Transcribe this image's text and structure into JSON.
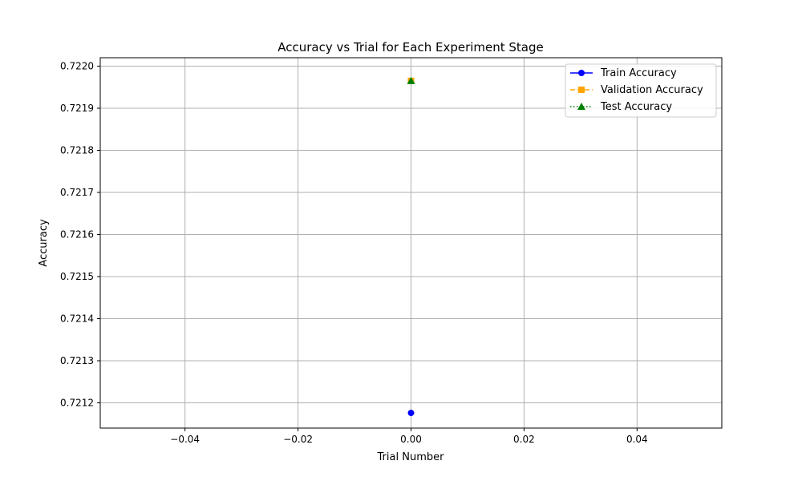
{
  "chart_data": {
    "type": "line",
    "title": "Accuracy vs Trial for Each Experiment Stage",
    "xlabel": "Trial Number",
    "ylabel": "Accuracy",
    "xlim": [
      -0.055,
      0.055
    ],
    "ylim": [
      0.72114,
      0.72202
    ],
    "xticks": [
      -0.04,
      -0.02,
      0.0,
      0.02,
      0.04
    ],
    "xtick_labels": [
      "−0.04",
      "−0.02",
      "0.00",
      "0.02",
      "0.04"
    ],
    "yticks": [
      0.7212,
      0.7213,
      0.7214,
      0.7215,
      0.7216,
      0.7217,
      0.7218,
      0.7219,
      0.722
    ],
    "ytick_labels": [
      "0.7212",
      "0.7213",
      "0.7214",
      "0.7215",
      "0.7216",
      "0.7217",
      "0.7218",
      "0.7219",
      "0.7220"
    ],
    "grid": true,
    "legend_position": "top-right",
    "series": [
      {
        "name": "Train Accuracy",
        "color": "#0000ff",
        "marker": "circle",
        "linestyle": "solid",
        "x": [
          0
        ],
        "y": [
          0.721176
        ]
      },
      {
        "name": "Validation Accuracy",
        "color": "#ffa500",
        "marker": "square",
        "linestyle": "dashed",
        "x": [
          0
        ],
        "y": [
          0.721965
        ]
      },
      {
        "name": "Test Accuracy",
        "color": "#008000",
        "marker": "triangle",
        "linestyle": "dotted",
        "x": [
          0
        ],
        "y": [
          0.721965
        ]
      }
    ]
  }
}
